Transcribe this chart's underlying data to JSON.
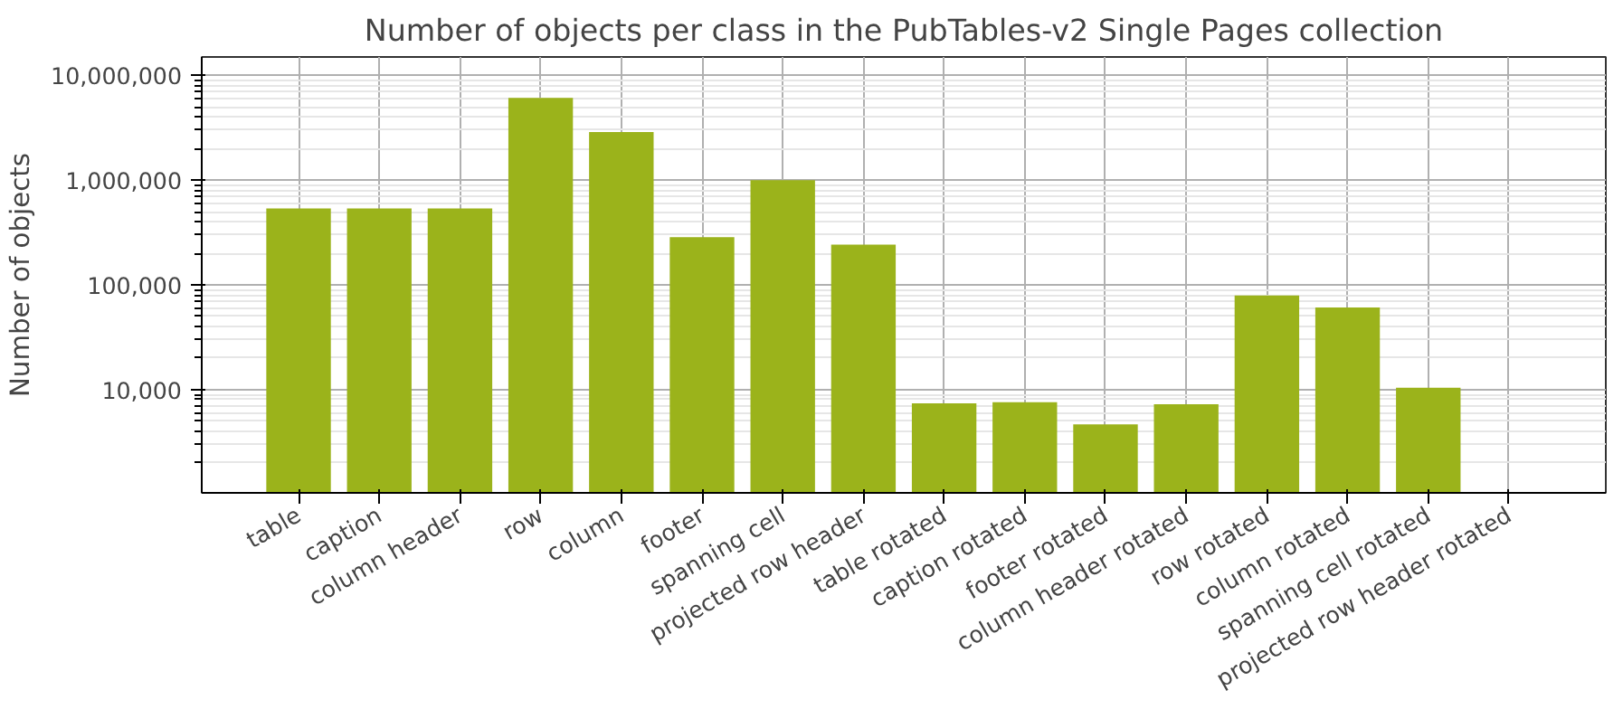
{
  "chart_data": {
    "type": "bar",
    "title": "Number of objects per class in the PubTables-v2 Single Pages collection",
    "ylabel": "Number of objects",
    "categories": [
      "table",
      "caption",
      "column header",
      "row",
      "column",
      "footer",
      "spanning cell",
      "projected row header",
      "table rotated",
      "caption rotated",
      "footer rotated",
      "column header rotated",
      "row rotated",
      "column rotated",
      "spanning cell rotated",
      "projected row header rotated"
    ],
    "values": [
      537000,
      537000,
      537000,
      6100000,
      2880000,
      285000,
      1000000,
      242000,
      7360,
      7550,
      4650,
      7250,
      79000,
      60700,
      10400,
      null
    ],
    "color": "#9bb31b",
    "log": "y",
    "ylim": [
      1030,
      15000000
    ],
    "yticks": [
      {
        "value": 10000,
        "label": "10,000"
      },
      {
        "value": 100000,
        "label": "100,000"
      },
      {
        "value": 1000000,
        "label": "1,000,000"
      },
      {
        "value": 10000000,
        "label": "10,000,000"
      }
    ],
    "grid": true
  }
}
